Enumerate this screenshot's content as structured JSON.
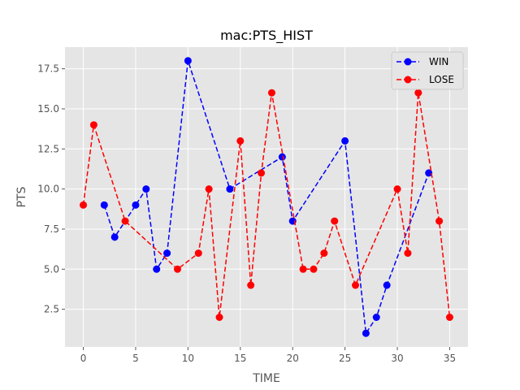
{
  "chart_data": {
    "type": "line",
    "title": "mac:PTS_HIST",
    "xlabel": "TIME",
    "ylabel": "PTS",
    "xlim": [
      -1.75,
      36.75
    ],
    "ylim": [
      0.15,
      18.85
    ],
    "xticks": [
      0,
      5,
      10,
      15,
      20,
      25,
      30,
      35
    ],
    "yticks": [
      2.5,
      5.0,
      7.5,
      10.0,
      12.5,
      15.0,
      17.5
    ],
    "xtick_labels": [
      "0",
      "5",
      "10",
      "15",
      "20",
      "25",
      "30",
      "35"
    ],
    "ytick_labels": [
      "2.5",
      "5.0",
      "7.5",
      "10.0",
      "12.5",
      "15.0",
      "17.5"
    ],
    "grid": true,
    "legend_position": "top-right",
    "series": [
      {
        "name": "WIN",
        "color": "#0000ff",
        "x": [
          2,
          3,
          5,
          6,
          7,
          8,
          10,
          14,
          19,
          20,
          25,
          27,
          28,
          29,
          33
        ],
        "y": [
          9,
          7,
          9,
          10,
          5,
          6,
          18,
          10,
          12,
          8,
          13,
          1,
          2,
          4,
          11
        ]
      },
      {
        "name": "LOSE",
        "color": "#ff0000",
        "x": [
          0,
          1,
          4,
          9,
          11,
          12,
          13,
          15,
          16,
          17,
          18,
          21,
          22,
          23,
          24,
          26,
          30,
          31,
          32,
          34,
          35
        ],
        "y": [
          9,
          14,
          8,
          5,
          6,
          10,
          2,
          13,
          4,
          11,
          16,
          5,
          5,
          6,
          8,
          4,
          10,
          6,
          16,
          8,
          2
        ]
      }
    ]
  }
}
